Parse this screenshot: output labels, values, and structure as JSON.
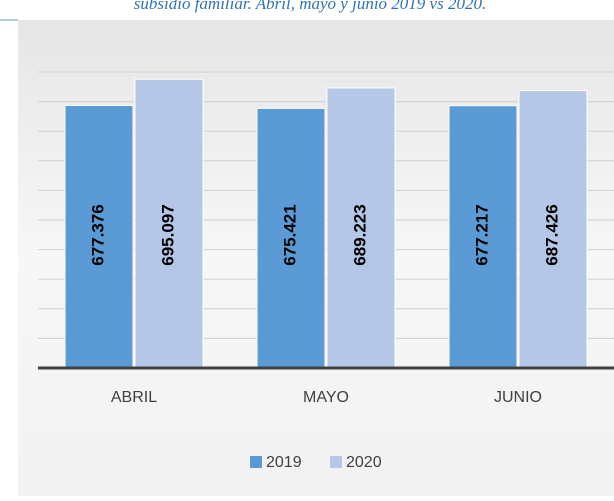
{
  "chart_data": {
    "type": "bar",
    "title": "subsidio familiar. Abril, mayo y junio 2019 vs 2020.",
    "categories": [
      "ABRIL",
      "MAYO",
      "JUNIO"
    ],
    "series": [
      {
        "name": "2019",
        "color": "#5b9bd5",
        "values": [
          677376,
          675421,
          677217
        ],
        "value_labels": [
          "677.376",
          "675.421",
          "677.217"
        ]
      },
      {
        "name": "2020",
        "color": "#b4c7e7",
        "values": [
          695097,
          689223,
          687426
        ],
        "value_labels": [
          "695.097",
          "689.223",
          "687.426"
        ]
      }
    ],
    "ylim": [
      500000,
      700000
    ],
    "yticks": [
      500000,
      520000,
      540000,
      560000,
      580000,
      600000,
      620000,
      640000,
      660000,
      680000,
      700000
    ],
    "grid": true,
    "legend": "bottom"
  }
}
